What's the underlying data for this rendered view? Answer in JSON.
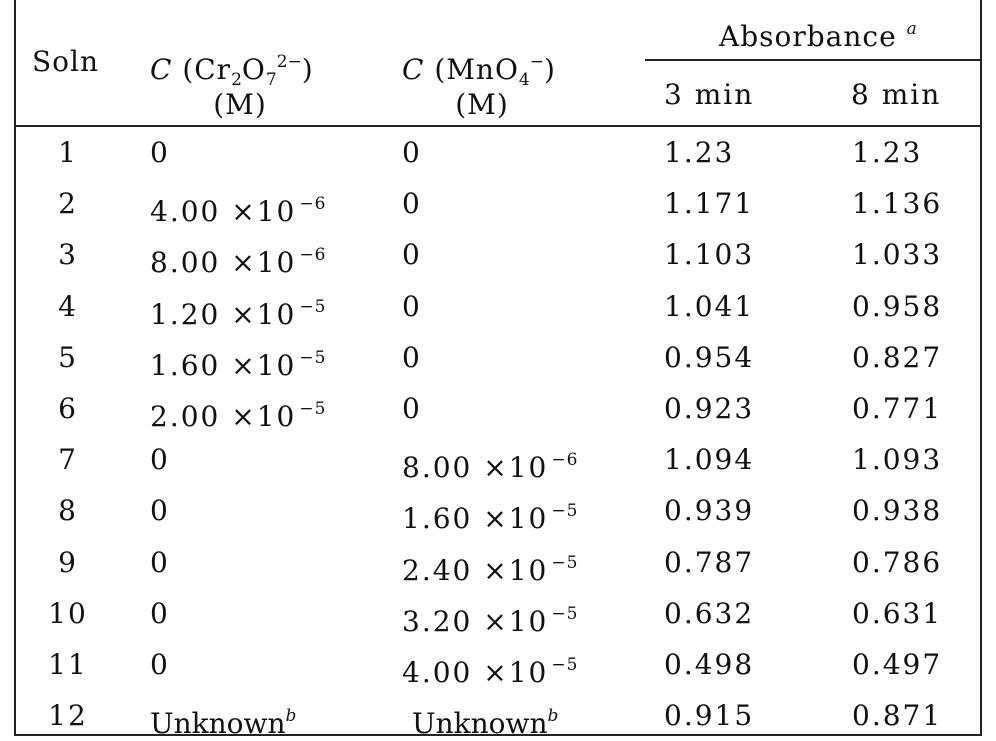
{
  "table": {
    "header": {
      "soln": "Soln",
      "cr_c": "C",
      "cr_open": " (Cr",
      "cr_sub2": "2",
      "cr_o": "O",
      "cr_sub7": "7",
      "cr_charge": "2−",
      "cr_close": ")",
      "cr_unit": "(M)",
      "mn_c": "C",
      "mn_open": " (MnO",
      "mn_sub4": "4",
      "mn_charge": "−",
      "mn_close": ")",
      "mn_unit": "(M)",
      "absorbance": "Absorbance",
      "absorbance_note": "a",
      "col_3min": "3  min",
      "col_8min": "8  min"
    },
    "rows": [
      {
        "soln": "1",
        "cr_mant": "0",
        "cr_exp": "",
        "mn_mant": "0",
        "mn_exp": "",
        "a3": "1.23",
        "a8": "1.23"
      },
      {
        "soln": "2",
        "cr_mant": "4.00 ×10",
        "cr_exp": "−6",
        "mn_mant": "0",
        "mn_exp": "",
        "a3": "1.171",
        "a8": "1.136"
      },
      {
        "soln": "3",
        "cr_mant": "8.00 ×10",
        "cr_exp": "−6",
        "mn_mant": "0",
        "mn_exp": "",
        "a3": "1.103",
        "a8": "1.033"
      },
      {
        "soln": "4",
        "cr_mant": "1.20 ×10",
        "cr_exp": "−5",
        "mn_mant": "0",
        "mn_exp": "",
        "a3": "1.041",
        "a8": "0.958"
      },
      {
        "soln": "5",
        "cr_mant": "1.60 ×10",
        "cr_exp": "−5",
        "mn_mant": "0",
        "mn_exp": "",
        "a3": "0.954",
        "a8": "0.827"
      },
      {
        "soln": "6",
        "cr_mant": "2.00 ×10",
        "cr_exp": "−5",
        "mn_mant": "0",
        "mn_exp": "",
        "a3": "0.923",
        "a8": "0.771"
      },
      {
        "soln": "7",
        "cr_mant": "0",
        "cr_exp": "",
        "mn_mant": "8.00 ×10",
        "mn_exp": "−6",
        "a3": "1.094",
        "a8": "1.093"
      },
      {
        "soln": "8",
        "cr_mant": "0",
        "cr_exp": "",
        "mn_mant": "1.60 ×10",
        "mn_exp": "−5",
        "a3": "0.939",
        "a8": "0.938"
      },
      {
        "soln": "9",
        "cr_mant": "0",
        "cr_exp": "",
        "mn_mant": "2.40 ×10",
        "mn_exp": "−5",
        "a3": "0.787",
        "a8": "0.786"
      },
      {
        "soln": "10",
        "cr_mant": "0",
        "cr_exp": "",
        "mn_mant": "3.20 ×10",
        "mn_exp": "−5",
        "a3": "0.632",
        "a8": "0.631"
      },
      {
        "soln": "11",
        "cr_mant": "0",
        "cr_exp": "",
        "mn_mant": "4.00 ×10",
        "mn_exp": "−5",
        "a3": "0.498",
        "a8": "0.497"
      },
      {
        "soln": "12",
        "cr_mant": "Unknown",
        "cr_exp": "b",
        "mn_mant": "Unknown",
        "mn_exp": "b",
        "a3": "0.915",
        "a8": "0.871"
      }
    ]
  }
}
